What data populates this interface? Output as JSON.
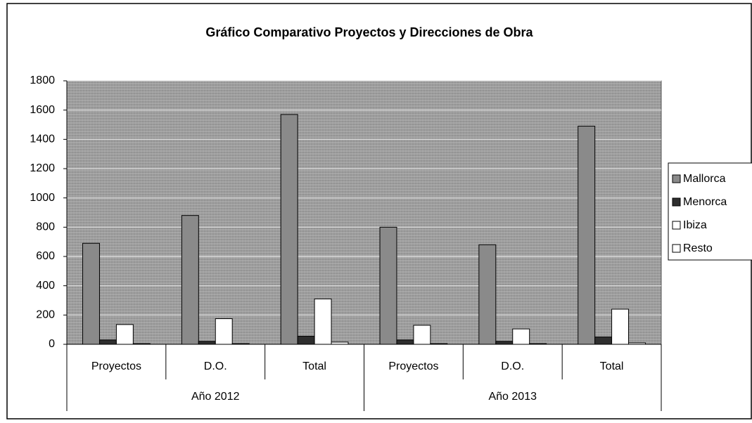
{
  "chart_data": {
    "type": "bar",
    "title": "Gráfico Comparativo Proyectos y Direcciones de Obra",
    "categories": [
      "Proyectos",
      "D.O.",
      "Total",
      "Proyectos",
      "D.O.",
      "Total"
    ],
    "category_groups": [
      "Año 2012",
      "Año 2013"
    ],
    "series": [
      {
        "name": "Mallorca",
        "color": "#8a8a8a",
        "values": [
          690,
          880,
          1570,
          800,
          680,
          1490
        ]
      },
      {
        "name": "Menorca",
        "color": "#2e2e2e",
        "values": [
          30,
          20,
          55,
          30,
          20,
          50
        ]
      },
      {
        "name": "Ibiza",
        "color": "#ffffff",
        "values": [
          135,
          175,
          310,
          130,
          105,
          240
        ]
      },
      {
        "name": "Resto",
        "color": "#ffffff",
        "values": [
          5,
          5,
          15,
          5,
          5,
          10
        ]
      }
    ],
    "ylim": [
      0,
      1800
    ],
    "yticks": [
      0,
      200,
      400,
      600,
      800,
      1000,
      1200,
      1400,
      1600,
      1800
    ],
    "grid": true,
    "legend": "right"
  }
}
